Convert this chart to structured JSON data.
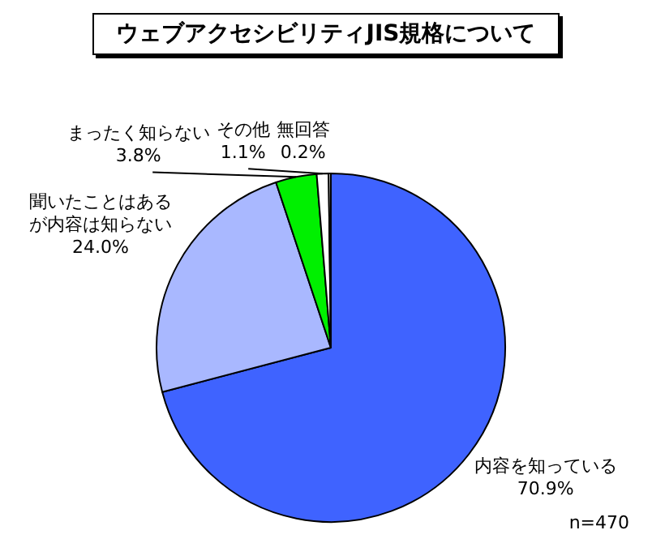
{
  "chart_data": {
    "type": "pie",
    "title": "ウェブアクセシビリティJIS規格について",
    "categories": [
      "内容を知っている",
      "聞いたことはあるが内容は知らない",
      "まったく知らない",
      "その他",
      "無回答"
    ],
    "values": [
      70.9,
      24.0,
      3.8,
      1.1,
      0.2
    ],
    "value_labels": [
      "70.9%",
      "24.0%",
      "3.8%",
      "1.1%",
      "0.2%"
    ],
    "colors": [
      "#3f63ff",
      "#a9b8ff",
      "#00f000",
      "#ffffff",
      "#ffffff"
    ],
    "annotations": [
      "n=470"
    ],
    "legend": false
  }
}
